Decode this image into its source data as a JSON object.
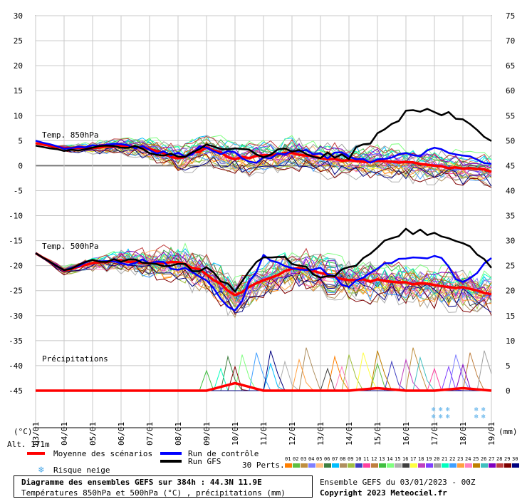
{
  "chart_data": {
    "type": "line",
    "title": "Diagramme des ensembles GEFS sur 384h : 44.3N 11.9E",
    "subtitle": "Températures 850hPa et 500hPa (°C) , précipitations (mm)",
    "run_info": "Ensemble GEFS du 03/01/2023 - 00Z",
    "copyright": "Copyright 2023 Meteociel.fr",
    "y_left_label": "(°C)",
    "y_right_label": "(mm)",
    "altitude_label": "Alt. 171m",
    "y_left_ticks": [
      30,
      25,
      20,
      15,
      10,
      5,
      0,
      -5,
      -10,
      -15,
      -20,
      -25,
      -30,
      -35,
      -40,
      -45
    ],
    "y_right_ticks": [
      75,
      70,
      65,
      60,
      55,
      50,
      45,
      40,
      35,
      30,
      25,
      20,
      15,
      10,
      5,
      0
    ],
    "ylim": [
      -45,
      30
    ],
    "x_dates": [
      "03/01",
      "04/01",
      "05/01",
      "06/01",
      "07/01",
      "08/01",
      "09/01",
      "10/01",
      "11/01",
      "12/01",
      "13/01",
      "14/01",
      "15/01",
      "16/01",
      "17/01",
      "18/01",
      "19/01"
    ],
    "panel_labels": [
      "Temp. 850hPa",
      "Temp. 500hPa",
      "Précipitations"
    ],
    "series": [
      {
        "name": "Moyenne des scénarios",
        "panel": "t850",
        "color": "#ff0000",
        "values": [
          4.5,
          3.5,
          3.5,
          4,
          3.5,
          1.5,
          3.5,
          1.5,
          2,
          2.5,
          1.5,
          1,
          1,
          0.5,
          0,
          -0.5,
          -1
        ]
      },
      {
        "name": "Run de contrôle",
        "panel": "t850",
        "color": "#0000ff",
        "values": [
          5,
          3.5,
          4,
          4.5,
          3,
          2,
          4,
          2,
          1,
          3,
          2,
          2,
          1,
          2,
          3,
          2,
          0
        ]
      },
      {
        "name": "Run GFS",
        "panel": "t850",
        "color": "#000000",
        "values": [
          4,
          3,
          3.5,
          4,
          3,
          2,
          4,
          3,
          2,
          3,
          2,
          2,
          6,
          10.5,
          11,
          9,
          5
        ]
      },
      {
        "name": "Moyenne des scénarios",
        "panel": "t500",
        "color": "#ff0000",
        "values": [
          -17.5,
          -21,
          -19.5,
          -19,
          -19.5,
          -19.5,
          -21.5,
          -26,
          -23,
          -20.5,
          -21.5,
          -23,
          -23,
          -23.5,
          -24,
          -24.5,
          -25.5
        ]
      },
      {
        "name": "Run de contrôle",
        "panel": "t500",
        "color": "#0000ff",
        "values": [
          -17.5,
          -21,
          -19,
          -19.5,
          -19,
          -20.5,
          -23,
          -29,
          -18.5,
          -20,
          -21,
          -24,
          -20,
          -19,
          -17.5,
          -24,
          -19
        ]
      },
      {
        "name": "Run GFS",
        "panel": "t500",
        "color": "#000000",
        "values": [
          -17.5,
          -21,
          -19,
          -19,
          -19.5,
          -20,
          -21,
          -25,
          -18,
          -19,
          -22,
          -21,
          -16,
          -13,
          -13.5,
          -15,
          -20.5
        ]
      },
      {
        "name": "Moyenne des scénarios",
        "panel": "precip",
        "color": "#ff0000",
        "values": [
          0,
          0,
          0,
          0,
          0,
          0,
          0,
          1.5,
          0,
          0,
          0,
          0,
          0.5,
          0,
          0,
          0.5,
          0
        ]
      }
    ],
    "legend": {
      "mean": "Moyenne des scénarios",
      "control": "Run de contrôle",
      "gfs": "Run GFS",
      "snow": "Risque neige",
      "perts_label": "30 Perts.",
      "perts_numbers": [
        "01",
        "02",
        "03",
        "04",
        "05",
        "06",
        "07",
        "08",
        "09",
        "10",
        "11",
        "12",
        "13",
        "14",
        "15",
        "16",
        "17",
        "18",
        "19",
        "20",
        "21",
        "22",
        "23",
        "24",
        "25",
        "26",
        "27",
        "28",
        "29",
        "30"
      ],
      "perts_colors": [
        "#ff7f00",
        "#5fbf3f",
        "#bf8f3f",
        "#7f7fff",
        "#ffbf7f",
        "#3f7f3f",
        "#00bfff",
        "#af8f5f",
        "#9fbf3f",
        "#3f3fbf",
        "#ff3f9f",
        "#bf7f3f",
        "#3fbf3f",
        "#7fff7f",
        "#afafaf",
        "#3f3f3f",
        "#ffff3f",
        "#bf3fbf",
        "#7f3fff",
        "#9f9f9f",
        "#00ffbf",
        "#3f9fff",
        "#ff9f3f",
        "#ff7fbf",
        "#bf7f00",
        "#3fbfbf",
        "#7f00bf",
        "#bf3f3f",
        "#7f0000",
        "#00007f"
      ]
    },
    "grid": true
  }
}
